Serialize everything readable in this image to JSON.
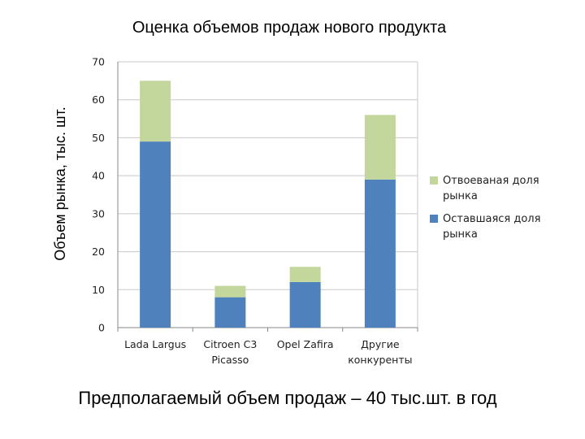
{
  "chart_data": {
    "type": "bar",
    "stacked": true,
    "title": "Оценка объемов продаж нового продукта",
    "xlabel": "",
    "ylabel": "Объем рынка, тыс. шт.",
    "ylim": [
      0,
      70
    ],
    "yticks": [
      0,
      10,
      20,
      30,
      40,
      50,
      60,
      70
    ],
    "grid": true,
    "legend_position": "right",
    "categories": [
      [
        "Lada Largus"
      ],
      [
        "Citroen C3",
        "Picasso"
      ],
      [
        "Opel Zafira"
      ],
      [
        "Другие",
        "конкуренты"
      ]
    ],
    "series": [
      {
        "name": "Оставшаяся доля рынка",
        "legend_lines": [
          "Оставшаяся доля",
          "рынка"
        ],
        "color": "#4F81BD",
        "values": [
          49,
          8,
          12,
          39
        ]
      },
      {
        "name": "Отвоеваная доля рынка",
        "legend_lines": [
          "Отвоеваная доля",
          "рынка"
        ],
        "color": "#C3D69B",
        "values": [
          16,
          3,
          4,
          17
        ]
      }
    ],
    "legend_order": [
      1,
      0
    ]
  },
  "footer": "Предполагаемый объем продаж – 40 тыс.шт. в год"
}
